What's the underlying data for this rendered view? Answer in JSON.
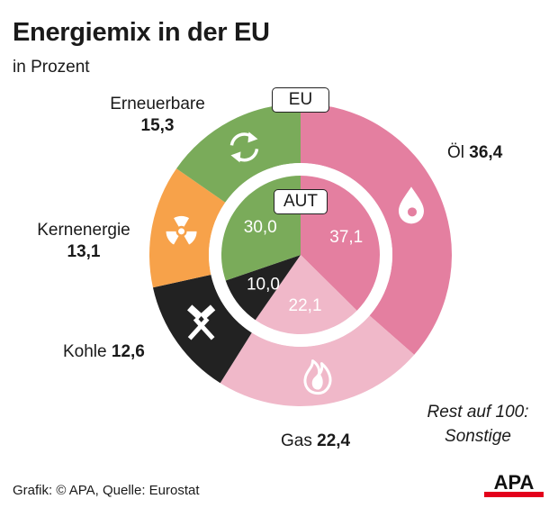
{
  "title": "Energiemix in der EU",
  "subtitle": "in Prozent",
  "footer": "Grafik: © APA, Quelle: Eurostat",
  "rest_line1": "Rest auf 100:",
  "rest_line2": "Sonstige",
  "logo_text": "APA",
  "colors": {
    "oel": "#e47fa0",
    "gas": "#f0b8c9",
    "kohle": "#222222",
    "kern": "#f7a24a",
    "erneuerbare": "#7aab5a"
  },
  "chart_data": {
    "type": "pie",
    "title": "Energiemix in der EU",
    "subtitle": "in Prozent",
    "outer": {
      "label": "EU",
      "segments": [
        {
          "name": "Öl",
          "value": 36.4,
          "value_label": "36,4",
          "icon": "drop-icon"
        },
        {
          "name": "Gas",
          "value": 22.4,
          "value_label": "22,4",
          "icon": "flame-icon"
        },
        {
          "name": "Kohle",
          "value": 12.6,
          "value_label": "12,6",
          "icon": "hammers-icon"
        },
        {
          "name": "Kernenergie",
          "value": 13.1,
          "value_label": "13,1",
          "icon": "radiation-icon"
        },
        {
          "name": "Erneuerbare",
          "value": 15.3,
          "value_label": "15,3",
          "icon": "recycle-icon"
        }
      ]
    },
    "inner": {
      "label": "AUT",
      "segments": [
        {
          "name": "Öl",
          "value": 37.1,
          "value_label": "37,1"
        },
        {
          "name": "Gas",
          "value": 22.1,
          "value_label": "22,1"
        },
        {
          "name": "Kohle",
          "value": 10.0,
          "value_label": "10,0"
        },
        {
          "name": "Kernenergie",
          "value": 0,
          "value_label": ""
        },
        {
          "name": "Erneuerbare",
          "value": 30.0,
          "value_label": "30,0"
        }
      ]
    },
    "note": "Rest auf 100: Sonstige"
  }
}
